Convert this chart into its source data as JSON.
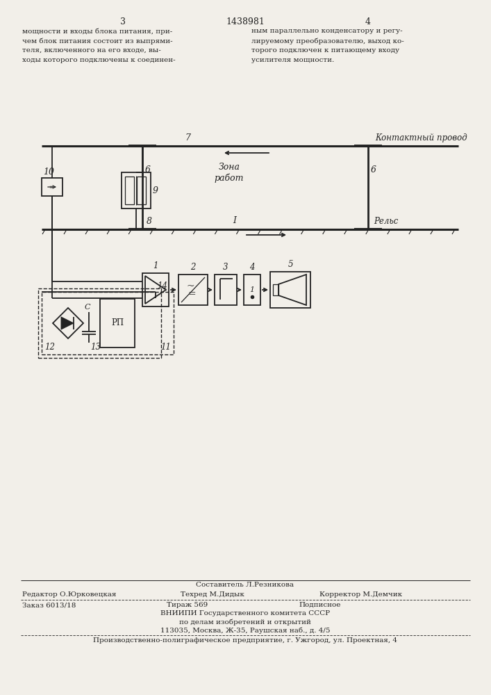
{
  "bg_color": "#f2efe9",
  "line_color": "#222222",
  "page_num_left": "3",
  "page_num_center": "1438981",
  "page_num_right": "4",
  "text_left_col": "мощности и входы блока питания, при-\nчем блок питания состоит из выпрями-\nтеля, включенного на его входе, вы-\nходы которого подключены к соединен-",
  "text_right_col": "ным параллельно конденсатору и регу-\nлируемому преобразователю, выход ко-\nторого подключен к питающему входу\nусилителя мощности.",
  "label_contact_wire": "Контактный провод",
  "label_zone": "Зона\nработ",
  "label_rail": "Рельс",
  "label_7": "7",
  "label_6a": "6",
  "label_6b": "6",
  "label_8": "8",
  "label_9": "9",
  "label_10": "10",
  "label_1": "1",
  "label_2": "2",
  "label_3": "3",
  "label_4": "4",
  "label_5": "5",
  "label_11": "11",
  "label_12": "12",
  "label_13": "13",
  "label_14": "14",
  "label_I": "I",
  "label_C": "C",
  "label_RP": "РП",
  "footer_line1_center": "Составитель Л.Резникова",
  "footer_line2_left": "Редактор О.Юрковецкая",
  "footer_line2_center": "Техред М.Дидык",
  "footer_line2_right": "Корректор М.Демчик",
  "footer_line3_left": "Заказ 6013/18",
  "footer_line3_center": "Тираж 569",
  "footer_line3_right": "Подписное",
  "footer_line4": "ВНИИПИ Государственного комитета СССР",
  "footer_line5": "по делам изобретений и открытий",
  "footer_line6": "113035, Москва, Ж-35, Раушская наб., д. 4/5",
  "footer_last": "Производственно-полиграфическое предприятие, г. Ужгород, ул. Проектная, 4"
}
